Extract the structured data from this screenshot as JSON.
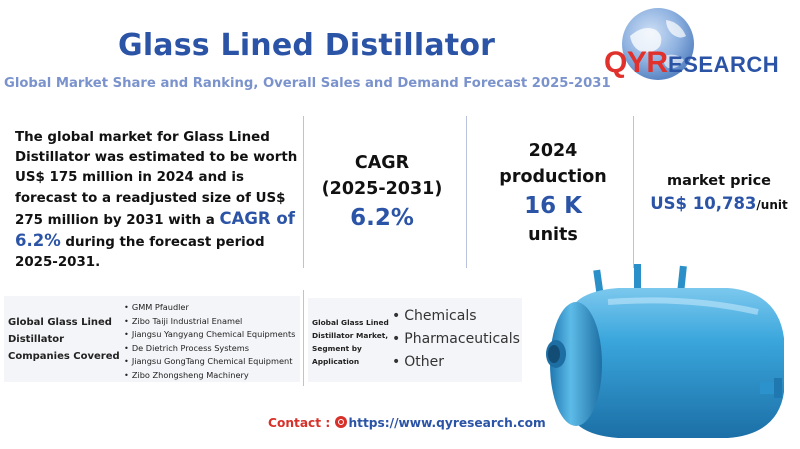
{
  "header": {
    "title": "Glass Lined Distillator",
    "subtitle": "Global Market Share and Ranking, Overall Sales and Demand Forecast 2025-2031"
  },
  "logo": {
    "brand_qy": "QY",
    "brand_r": "R",
    "brand_rest": "ESEARCH",
    "icon": "globe-icon"
  },
  "intro": {
    "text_before": "The global market for Glass Lined Distillator was estimated to be worth US$ 175 million in 2024 and is forecast to a readjusted size of US$ 275 million by 2031 with a ",
    "cagr_text": "CAGR of 6.2%",
    "text_after": " during the forecast period 2025-2031."
  },
  "stats": {
    "cagr": {
      "label_line1": "CAGR",
      "label_line2": "(2025-2031)",
      "value": "6.2%"
    },
    "production": {
      "label_line1": "2024",
      "label_line2": "production",
      "value": "16 K",
      "unit": "units"
    },
    "price": {
      "label": "market price",
      "value": "US$ 10,783",
      "unit": "/unit"
    }
  },
  "companies": {
    "title": "Global Glass Lined Distillator Companies Covered",
    "items": [
      "GMM Pfaudler",
      "Zibo Taiji Industrial Enamel",
      "Jiangsu Yangyang Chemical Equipments",
      "De Dietrich Process Systems",
      "Jiangsu GongTang Chemical Equipment",
      "Zibo Zhongsheng Machinery"
    ]
  },
  "segments": {
    "title": "Global Glass Lined Distillator Market, Segment by Application",
    "items": [
      "Chemicals",
      "Pharmaceuticals",
      "Other"
    ]
  },
  "contact": {
    "label": "Contact :",
    "url": "https://www.qyresearch.com",
    "icon": "link-icon"
  },
  "image": {
    "icon": "glass-lined-vessel-image"
  },
  "colors": {
    "accent_blue": "#2b54a6",
    "subtitle_blue": "#7b93cc",
    "brand_red": "#e0312c",
    "vessel_blue": "#2f9ed6"
  }
}
